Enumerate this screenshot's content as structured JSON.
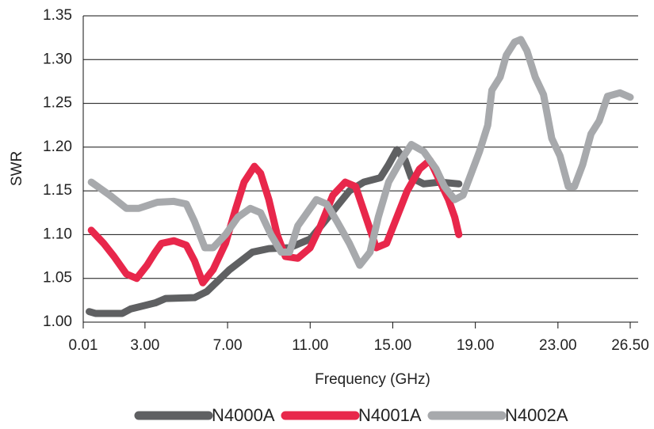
{
  "chart_data": {
    "type": "line",
    "x_label": "Frequency (GHz)",
    "y_label": "SWR",
    "xlim": [
      0.01,
      26.5
    ],
    "xticks": [
      0.01,
      {
        "value": 3,
        "label": "3.00"
      },
      {
        "value": 7,
        "label": "7.00"
      },
      {
        "value": 11,
        "label": "11.00"
      },
      {
        "value": 15,
        "label": "15.00"
      },
      {
        "value": 19,
        "label": "19.00"
      },
      {
        "value": 23,
        "label": "23.00"
      },
      {
        "value": 26.5,
        "label": "26.50"
      }
    ],
    "ylim": [
      1.0,
      1.35
    ],
    "yticks": [
      {
        "value": 1.0,
        "label": "1.00"
      },
      1.05,
      {
        "value": 1.1,
        "label": "1.10"
      },
      1.15,
      {
        "value": 1.2,
        "label": "1.20"
      },
      1.25,
      {
        "value": 1.3,
        "label": "1.30"
      },
      1.35
    ],
    "grid": true,
    "legend": "bottom",
    "series": [
      {
        "name": "N4000A",
        "color": "#5f6062",
        "x": [
          0.3,
          0.6,
          1.9,
          2.3,
          3.5,
          4.0,
          5.4,
          6.0,
          7.1,
          8.2,
          9.0,
          10.0,
          11.0,
          11.7,
          12.9,
          13.6,
          14.4,
          14.8,
          15.2,
          15.6,
          15.9,
          16.5,
          17.3,
          18.2
        ],
        "values": [
          1.012,
          1.01,
          1.01,
          1.015,
          1.022,
          1.027,
          1.028,
          1.035,
          1.06,
          1.08,
          1.084,
          1.085,
          1.095,
          1.115,
          1.15,
          1.16,
          1.165,
          1.18,
          1.197,
          1.185,
          1.165,
          1.158,
          1.16,
          1.158
        ]
      },
      {
        "name": "N4001A",
        "color": "#e8274b",
        "x": [
          0.4,
          1.0,
          1.5,
          2.1,
          2.6,
          3.1,
          3.5,
          3.8,
          4.4,
          5.0,
          5.4,
          5.8,
          6.3,
          6.9,
          7.4,
          7.8,
          8.3,
          8.6,
          9.0,
          9.4,
          9.8,
          10.4,
          11.0,
          11.5,
          12.1,
          12.7,
          13.2,
          13.7,
          14.2,
          14.7,
          15.2,
          15.7,
          16.3,
          16.8,
          17.2,
          17.7,
          18.0,
          18.2
        ],
        "values": [
          1.105,
          1.09,
          1.075,
          1.055,
          1.05,
          1.065,
          1.08,
          1.09,
          1.093,
          1.088,
          1.07,
          1.045,
          1.06,
          1.09,
          1.13,
          1.16,
          1.178,
          1.17,
          1.14,
          1.1,
          1.075,
          1.073,
          1.085,
          1.11,
          1.145,
          1.16,
          1.155,
          1.12,
          1.085,
          1.09,
          1.12,
          1.15,
          1.175,
          1.185,
          1.165,
          1.14,
          1.12,
          1.1
        ]
      },
      {
        "name": "N4002A",
        "color": "#a7a9ac",
        "x": [
          0.4,
          1.3,
          2.1,
          2.7,
          3.6,
          4.4,
          5.0,
          5.4,
          5.9,
          6.3,
          6.9,
          7.5,
          8.1,
          8.6,
          9.1,
          9.6,
          10.0,
          10.4,
          11.0,
          11.3,
          11.8,
          12.3,
          12.9,
          13.4,
          13.9,
          14.3,
          14.8,
          15.4,
          15.9,
          16.5,
          17.1,
          17.5,
          18.0,
          18.4,
          18.8,
          19.2,
          19.6,
          19.8,
          20.2,
          20.5,
          20.9,
          21.2,
          21.5,
          21.9,
          22.3,
          22.7,
          23.1,
          23.5,
          23.8,
          24.2,
          24.6,
          25.0,
          25.4,
          26.0,
          26.5
        ],
        "values": [
          1.16,
          1.145,
          1.13,
          1.13,
          1.137,
          1.138,
          1.135,
          1.115,
          1.085,
          1.085,
          1.1,
          1.12,
          1.13,
          1.125,
          1.1,
          1.08,
          1.08,
          1.11,
          1.13,
          1.14,
          1.135,
          1.115,
          1.09,
          1.065,
          1.08,
          1.12,
          1.16,
          1.185,
          1.203,
          1.195,
          1.175,
          1.155,
          1.14,
          1.145,
          1.17,
          1.195,
          1.225,
          1.265,
          1.28,
          1.305,
          1.32,
          1.323,
          1.31,
          1.28,
          1.26,
          1.21,
          1.19,
          1.155,
          1.155,
          1.18,
          1.215,
          1.23,
          1.258,
          1.262,
          1.257
        ]
      }
    ]
  }
}
